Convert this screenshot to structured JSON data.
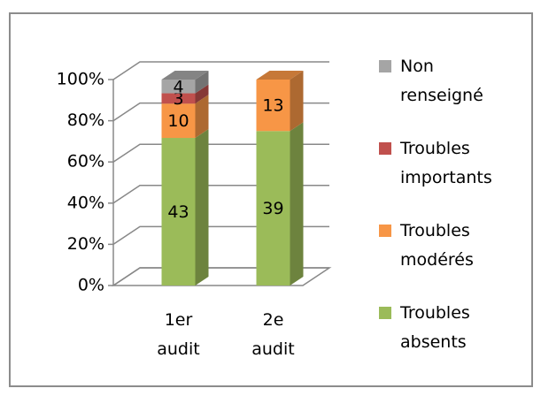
{
  "chart_data": {
    "type": "bar3d",
    "stacking": "percent",
    "categories": [
      "1er audit",
      "2e audit"
    ],
    "series": [
      {
        "name": "Troubles absents",
        "color": "#9bbb59",
        "values": [
          43,
          39
        ]
      },
      {
        "name": "Troubles modérés",
        "color": "#f79646",
        "values": [
          10,
          13
        ]
      },
      {
        "name": "Troubles importants",
        "color": "#c0504d",
        "values": [
          3,
          null
        ]
      },
      {
        "name": "Non renseigné",
        "color": "#a5a5a5",
        "values": [
          4,
          null
        ]
      }
    ],
    "ylim": [
      0,
      100
    ],
    "yticks": [
      {
        "value": 0,
        "label": "0%"
      },
      {
        "value": 20,
        "label": "20%"
      },
      {
        "value": 40,
        "label": "40%"
      },
      {
        "value": 60,
        "label": "60%"
      },
      {
        "value": 80,
        "label": "80%"
      },
      {
        "value": 100,
        "label": "100%"
      }
    ],
    "grid": true,
    "legend": "right"
  }
}
